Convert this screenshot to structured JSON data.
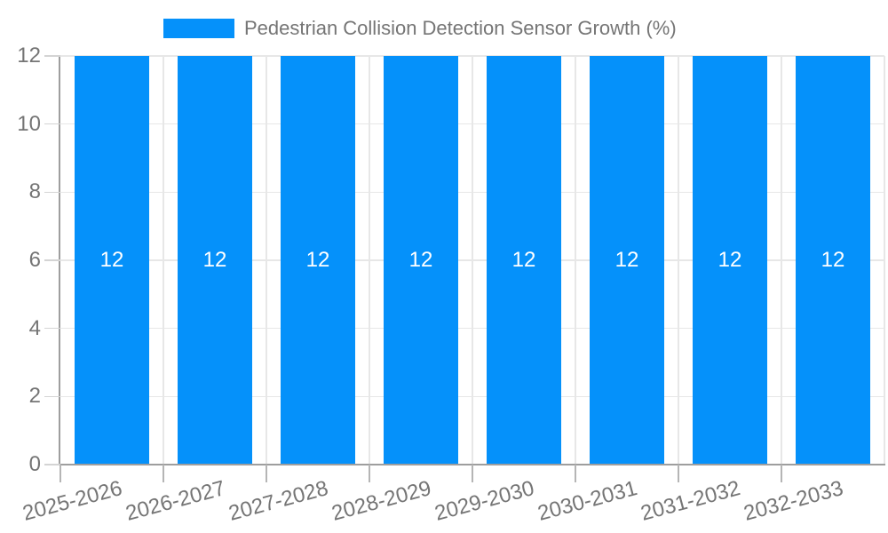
{
  "chart_data": {
    "type": "bar",
    "title": "Pedestrian Collision Detection Sensor Growth (%)",
    "categories": [
      "2025-2026",
      "2026-2027",
      "2027-2028",
      "2028-2029",
      "2029-2030",
      "2030-2031",
      "2031-2032",
      "2032-2033"
    ],
    "series": [
      {
        "name": "Pedestrian Collision Detection Sensor Growth (%)",
        "values": [
          12,
          12,
          12,
          12,
          12,
          12,
          12,
          12
        ]
      }
    ],
    "bar_labels": [
      "12",
      "12",
      "12",
      "12",
      "12",
      "12",
      "12",
      "12"
    ],
    "xlabel": "",
    "ylabel": "",
    "ylim": [
      0,
      12
    ],
    "yticks": [
      0,
      2,
      4,
      6,
      8,
      10,
      12
    ],
    "grid": true,
    "legend_position": "top",
    "colors": {
      "bar": "#0591FA",
      "bar_label": "#ffffff",
      "axis_text": "#757575",
      "gridline": "#e7e7e7",
      "axis_line": "#9e9e9e",
      "x_tick": "#b5b5b5",
      "y_tick": "#d4d4d4"
    }
  }
}
